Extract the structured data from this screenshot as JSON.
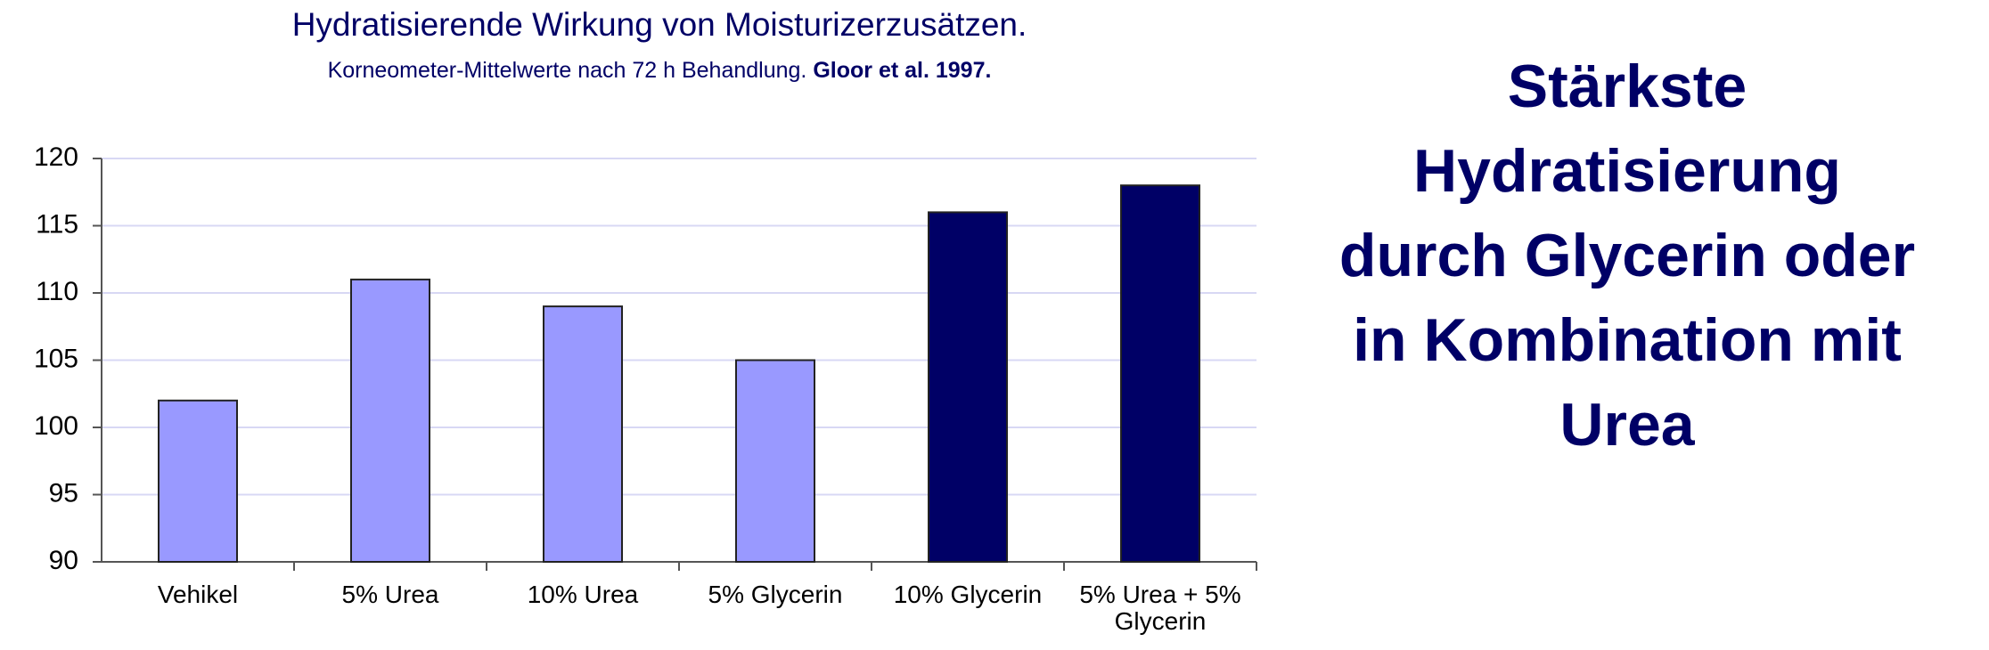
{
  "chart_data": {
    "type": "bar",
    "title": "Hydratisierende Wirkung von Moisturizerzusätzen.",
    "subtitle": "Korneometer-Mittelwerte nach 72 h Behandlung.",
    "source": "Gloor et al. 1997.",
    "categories": [
      "Vehikel",
      "5% Urea",
      "10% Urea",
      "5% Glycerin",
      "10% Glycerin",
      "5% Urea + 5% Glycerin"
    ],
    "values": [
      102,
      111,
      109,
      105,
      116,
      118
    ],
    "colors": [
      "#9999ff",
      "#9999ff",
      "#9999ff",
      "#9999ff",
      "#000066",
      "#000066"
    ],
    "ylim": [
      90,
      120
    ],
    "yticks": [
      90,
      95,
      100,
      105,
      110,
      115,
      120
    ],
    "grid": true,
    "annotation": [
      "Stärkste",
      "Hydratisierung",
      "durch Glycerin oder",
      "in Kombination mit",
      "Urea"
    ]
  }
}
